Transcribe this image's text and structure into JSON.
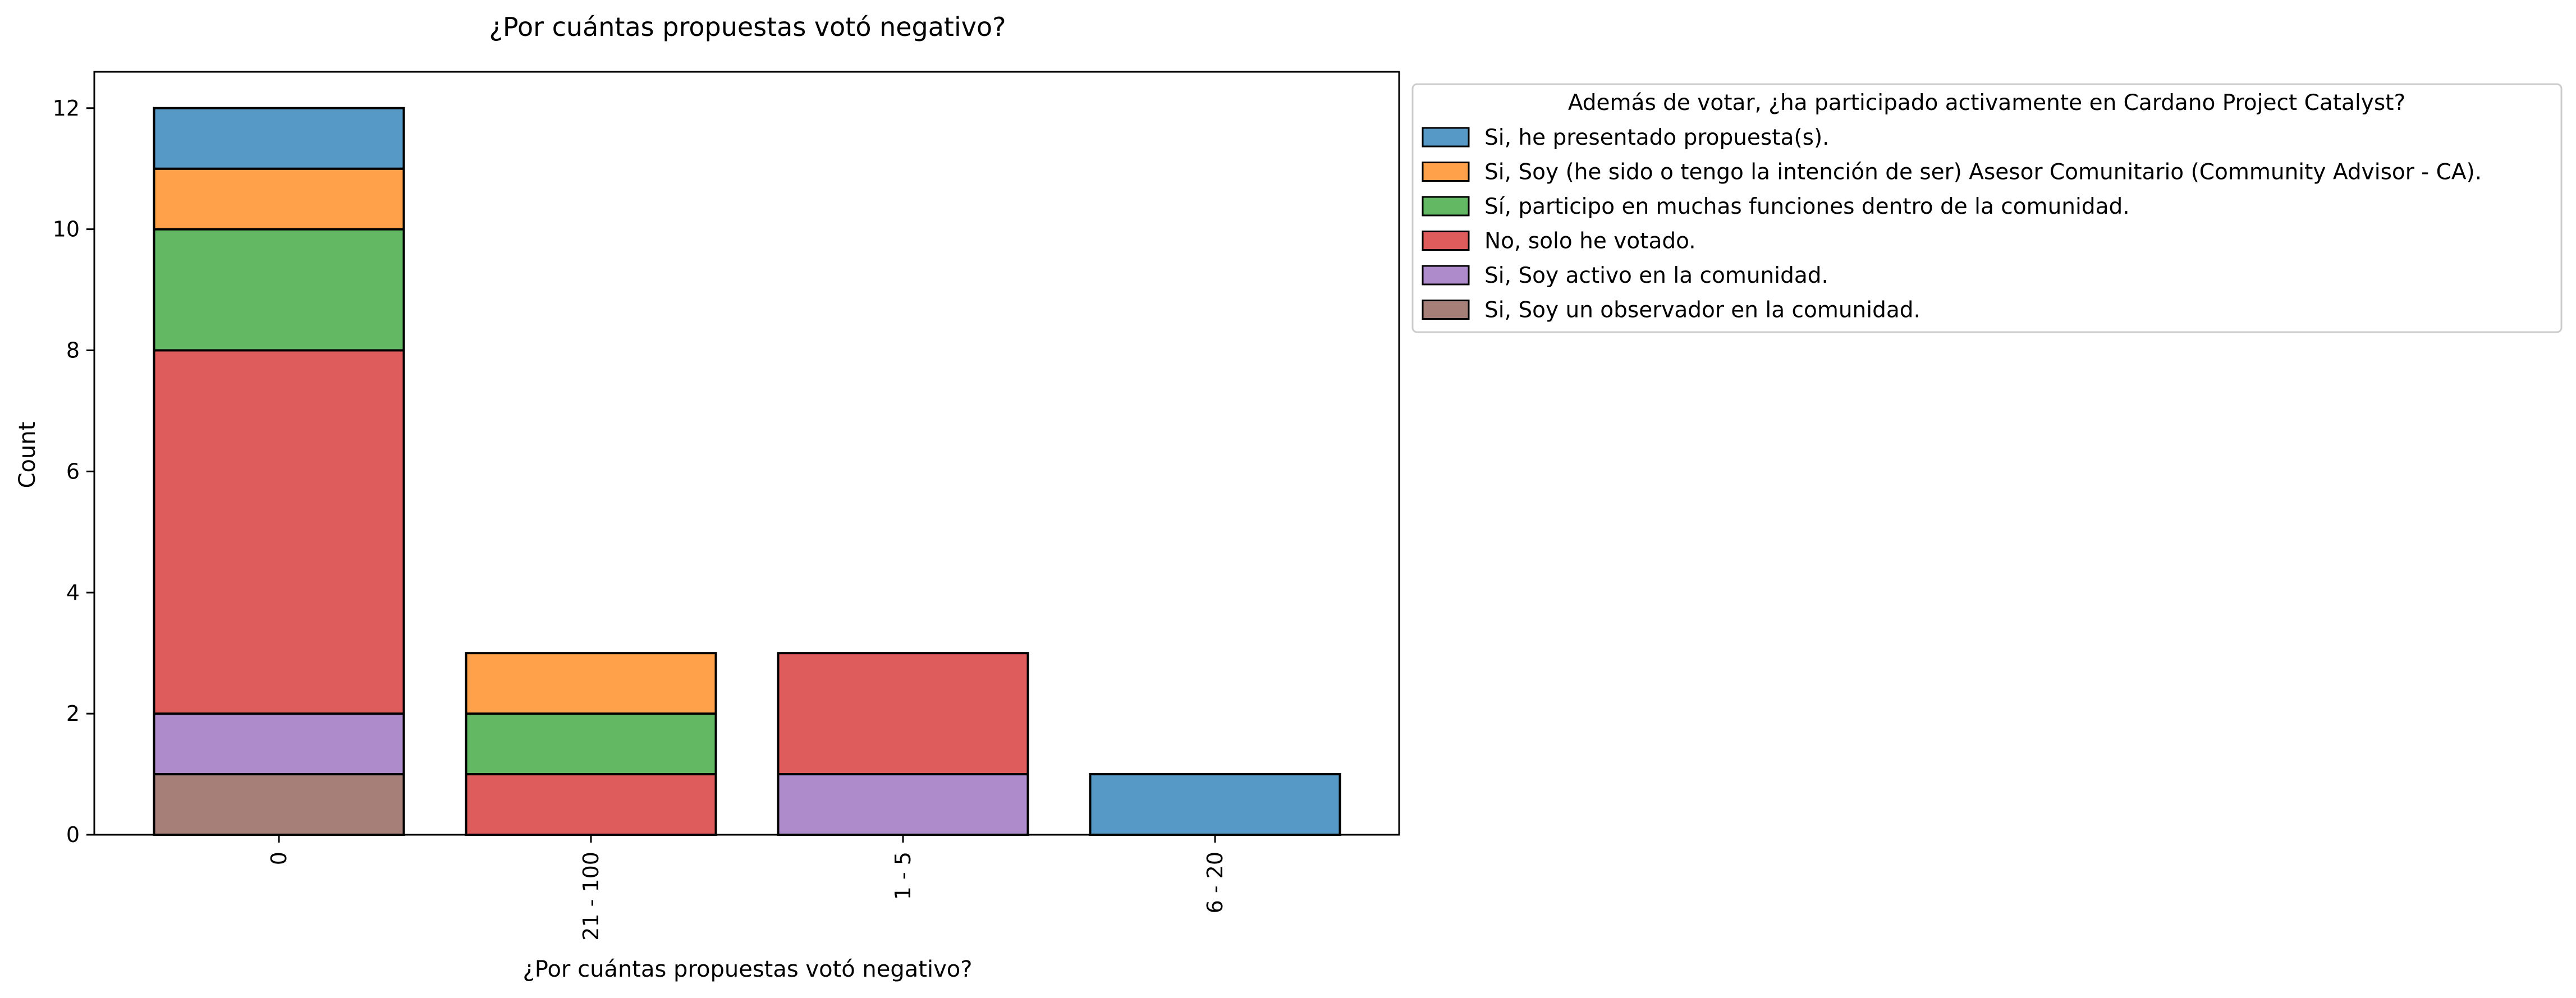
{
  "chart_data": {
    "type": "bar",
    "stacked": true,
    "title": "¿Por cuántas propuestas votó negativo?",
    "xlabel": "¿Por cuántas propuestas votó negativo?",
    "ylabel": "Count",
    "categories": [
      "0",
      "21 - 100",
      "1 - 5",
      "6 - 20"
    ],
    "ylim": [
      0,
      12.6
    ],
    "yticks": [
      0,
      2,
      4,
      6,
      8,
      10,
      12
    ],
    "grid": false,
    "legend_title": "Además de votar, ¿ha participado activamente en Cardano Project Catalyst?",
    "legend_position": "outside-right-top",
    "stack_order_bottom_to_top": [
      "Si, Soy un observador en la comunidad.",
      "Si, Soy activo en la comunidad.",
      "No, solo he votado.",
      "Sí, participo en muchas funciones dentro de la comunidad.",
      "Si, Soy (he sido o tengo la intención de ser) Asesor Comunitario (Community Advisor - CA).",
      "Si, he presentado propuesta(s)."
    ],
    "series": [
      {
        "name": "Si, he presentado propuesta(s).",
        "color": "#5698c6",
        "values": [
          1,
          0,
          0,
          1
        ]
      },
      {
        "name": "Si, Soy (he sido o tengo la intención de ser) Asesor Comunitario (Community Advisor - CA).",
        "color": "#ffa04a",
        "values": [
          1,
          1,
          0,
          0
        ]
      },
      {
        "name": "Sí, participo en muchas funciones dentro de la comunidad.",
        "color": "#63b863",
        "values": [
          2,
          1,
          0,
          0
        ]
      },
      {
        "name": "No, solo he votado.",
        "color": "#df5c5c",
        "values": [
          6,
          1,
          2,
          0
        ]
      },
      {
        "name": "Si, Soy activo en la comunidad.",
        "color": "#ae8ccc",
        "values": [
          1,
          0,
          1,
          0
        ]
      },
      {
        "name": "Si, Soy un observador en la comunidad.",
        "color": "#a67f78",
        "values": [
          1,
          0,
          0,
          0
        ]
      }
    ]
  }
}
